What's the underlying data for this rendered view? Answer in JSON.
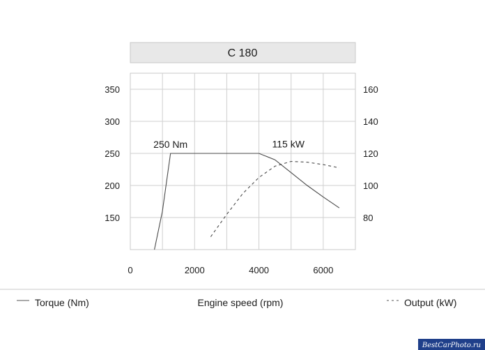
{
  "chart_data": {
    "type": "line",
    "title": "C 180",
    "xlabel": "Engine speed (rpm)",
    "x_ticks": [
      0,
      2000,
      4000,
      6000
    ],
    "xlim": [
      0,
      7000
    ],
    "y_left_ticks": [
      150,
      200,
      250,
      300,
      350
    ],
    "y_left_lim": [
      100,
      375
    ],
    "y_right_ticks": [
      80,
      100,
      120,
      140,
      160
    ],
    "y_right_lim": [
      60,
      170
    ],
    "grid": true,
    "series": [
      {
        "name": "Torque (Nm)",
        "axis": "left",
        "style": "solid",
        "points": [
          [
            750,
            100
          ],
          [
            1000,
            160
          ],
          [
            1250,
            250
          ],
          [
            4000,
            250
          ],
          [
            4500,
            240
          ],
          [
            5000,
            220
          ],
          [
            5500,
            200
          ],
          [
            6000,
            182
          ],
          [
            6500,
            165
          ]
        ]
      },
      {
        "name": "Output (kW)",
        "axis": "right",
        "style": "dashed",
        "points": [
          [
            2500,
            68
          ],
          [
            3000,
            82
          ],
          [
            3500,
            95
          ],
          [
            4000,
            105
          ],
          [
            4500,
            112
          ],
          [
            5000,
            115
          ],
          [
            5500,
            114.5
          ],
          [
            6000,
            113
          ],
          [
            6500,
            111
          ]
        ]
      }
    ],
    "annotations": [
      {
        "text": "250 Nm",
        "x": 1250,
        "y": 250,
        "axis": "left"
      },
      {
        "text": "115 kW",
        "x": 5000,
        "y": 115,
        "axis": "right"
      }
    ],
    "legend": {
      "left_entry": "Torque (Nm)",
      "right_entry": "Output (kW)",
      "center_label": "Engine speed (rpm)"
    },
    "watermark": "BestCarPhoto.ru"
  }
}
